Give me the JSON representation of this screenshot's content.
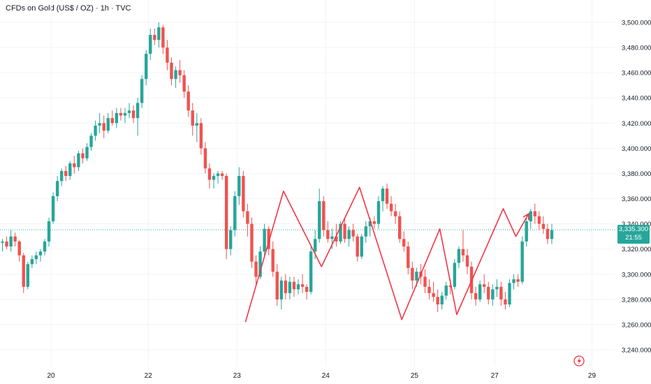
{
  "header": {
    "title": "CFDs on Gold (US$ / OZ) · 1h · TVC"
  },
  "price_label": {
    "price": "3,335.300",
    "countdown": "21:55"
  },
  "colors": {
    "up": "#26a69a",
    "down": "#ef5350",
    "pattern": "#f23645",
    "price_line": "#26a69a",
    "grid": "#f0f3fa"
  },
  "icons": {
    "event": "lightning-icon"
  },
  "chart_data": {
    "type": "candlestick",
    "title": "CFDs on Gold (US$ / OZ) · 1h · TVC",
    "ylim": [
      3230,
      3505
    ],
    "y_ticks": [
      "3,240.000",
      "3,260.000",
      "3,280.000",
      "3,300.000",
      "3,320.000",
      "3,340.000",
      "3,360.000",
      "3,380.000",
      "3,400.000",
      "3,420.000",
      "3,440.000",
      "3,460.000",
      "3,480.000",
      "3,500.000"
    ],
    "x_ticks": [
      "20",
      "22",
      "23",
      "24",
      "25",
      "27",
      "29"
    ],
    "x_tick_bars": [
      11.5,
      34.5,
      55.5,
      76.5,
      97.5,
      116.5,
      139.5
    ],
    "last_price": 3335.3,
    "candles": [
      [
        3325,
        3328,
        3318,
        3326
      ],
      [
        3326,
        3330,
        3320,
        3322
      ],
      [
        3322,
        3335,
        3318,
        3330
      ],
      [
        3330,
        3333,
        3322,
        3326
      ],
      [
        3326,
        3327,
        3310,
        3315
      ],
      [
        3315,
        3317,
        3285,
        3290
      ],
      [
        3290,
        3310,
        3288,
        3308
      ],
      [
        3308,
        3315,
        3305,
        3312
      ],
      [
        3312,
        3318,
        3308,
        3315
      ],
      [
        3315,
        3320,
        3310,
        3318
      ],
      [
        3318,
        3328,
        3315,
        3326
      ],
      [
        3326,
        3345,
        3322,
        3342
      ],
      [
        3342,
        3365,
        3340,
        3362
      ],
      [
        3362,
        3378,
        3358,
        3374
      ],
      [
        3374,
        3384,
        3370,
        3382
      ],
      [
        3382,
        3386,
        3374,
        3378
      ],
      [
        3378,
        3390,
        3375,
        3388
      ],
      [
        3388,
        3394,
        3380,
        3385
      ],
      [
        3385,
        3398,
        3382,
        3396
      ],
      [
        3396,
        3400,
        3388,
        3392
      ],
      [
        3392,
        3404,
        3390,
        3401
      ],
      [
        3401,
        3412,
        3398,
        3410
      ],
      [
        3410,
        3422,
        3406,
        3418
      ],
      [
        3418,
        3428,
        3412,
        3420
      ],
      [
        3420,
        3426,
        3408,
        3414
      ],
      [
        3414,
        3428,
        3412,
        3424
      ],
      [
        3424,
        3430,
        3418,
        3420
      ],
      [
        3420,
        3432,
        3416,
        3428
      ],
      [
        3428,
        3432,
        3422,
        3426
      ],
      [
        3426,
        3432,
        3420,
        3428
      ],
      [
        3428,
        3436,
        3424,
        3430
      ],
      [
        3430,
        3434,
        3420,
        3424
      ],
      [
        3424,
        3440,
        3410,
        3436
      ],
      [
        3436,
        3458,
        3432,
        3455
      ],
      [
        3455,
        3478,
        3450,
        3475
      ],
      [
        3475,
        3495,
        3470,
        3490
      ],
      [
        3490,
        3495,
        3482,
        3486
      ],
      [
        3486,
        3500,
        3480,
        3496
      ],
      [
        3496,
        3498,
        3475,
        3480
      ],
      [
        3480,
        3486,
        3462,
        3468
      ],
      [
        3468,
        3472,
        3450,
        3455
      ],
      [
        3455,
        3465,
        3448,
        3462
      ],
      [
        3462,
        3470,
        3452,
        3458
      ],
      [
        3458,
        3462,
        3440,
        3445
      ],
      [
        3445,
        3450,
        3425,
        3430
      ],
      [
        3430,
        3436,
        3410,
        3418
      ],
      [
        3418,
        3428,
        3405,
        3420
      ],
      [
        3420,
        3424,
        3395,
        3400
      ],
      [
        3400,
        3405,
        3380,
        3384
      ],
      [
        3384,
        3388,
        3368,
        3375
      ],
      [
        3375,
        3380,
        3368,
        3378
      ],
      [
        3378,
        3382,
        3372,
        3380
      ],
      [
        3380,
        3382,
        3375,
        3378
      ],
      [
        3378,
        3380,
        3312,
        3320
      ],
      [
        3320,
        3338,
        3315,
        3335
      ],
      [
        3335,
        3366,
        3330,
        3362
      ],
      [
        3362,
        3385,
        3355,
        3378
      ],
      [
        3378,
        3382,
        3345,
        3350
      ],
      [
        3350,
        3356,
        3330,
        3340
      ],
      [
        3340,
        3345,
        3305,
        3310
      ],
      [
        3310,
        3315,
        3292,
        3298
      ],
      [
        3298,
        3322,
        3296,
        3318
      ],
      [
        3318,
        3340,
        3315,
        3336
      ],
      [
        3336,
        3338,
        3315,
        3320
      ],
      [
        3320,
        3326,
        3298,
        3302
      ],
      [
        3302,
        3308,
        3275,
        3280
      ],
      [
        3280,
        3298,
        3272,
        3295
      ],
      [
        3295,
        3300,
        3280,
        3285
      ],
      [
        3285,
        3298,
        3280,
        3294
      ],
      [
        3294,
        3298,
        3282,
        3288
      ],
      [
        3288,
        3296,
        3284,
        3292
      ],
      [
        3292,
        3300,
        3285,
        3290
      ],
      [
        3290,
        3292,
        3280,
        3286
      ],
      [
        3286,
        3322,
        3284,
        3318
      ],
      [
        3318,
        3335,
        3312,
        3328
      ],
      [
        3328,
        3368,
        3325,
        3358
      ],
      [
        3358,
        3362,
        3330,
        3335
      ],
      [
        3335,
        3342,
        3325,
        3328
      ],
      [
        3328,
        3336,
        3320,
        3330
      ],
      [
        3330,
        3340,
        3322,
        3326
      ],
      [
        3326,
        3342,
        3324,
        3340
      ],
      [
        3340,
        3345,
        3325,
        3328
      ],
      [
        3328,
        3338,
        3322,
        3335
      ],
      [
        3335,
        3340,
        3326,
        3330
      ],
      [
        3330,
        3332,
        3310,
        3314
      ],
      [
        3314,
        3332,
        3312,
        3330
      ],
      [
        3330,
        3342,
        3325,
        3338
      ],
      [
        3338,
        3345,
        3330,
        3342
      ],
      [
        3342,
        3346,
        3336,
        3340
      ],
      [
        3340,
        3362,
        3336,
        3358
      ],
      [
        3358,
        3370,
        3350,
        3368
      ],
      [
        3368,
        3372,
        3352,
        3356
      ],
      [
        3356,
        3362,
        3346,
        3350
      ],
      [
        3350,
        3356,
        3340,
        3346
      ],
      [
        3346,
        3350,
        3325,
        3328
      ],
      [
        3328,
        3334,
        3318,
        3322
      ],
      [
        3322,
        3326,
        3300,
        3305
      ],
      [
        3305,
        3310,
        3288,
        3295
      ],
      [
        3295,
        3305,
        3290,
        3302
      ],
      [
        3302,
        3308,
        3292,
        3298
      ],
      [
        3298,
        3304,
        3285,
        3290
      ],
      [
        3290,
        3296,
        3280,
        3285
      ],
      [
        3285,
        3294,
        3278,
        3282
      ],
      [
        3282,
        3288,
        3270,
        3276
      ],
      [
        3276,
        3286,
        3272,
        3283
      ],
      [
        3283,
        3294,
        3280,
        3291
      ],
      [
        3291,
        3296,
        3284,
        3290
      ],
      [
        3290,
        3312,
        3288,
        3309
      ],
      [
        3309,
        3322,
        3305,
        3320
      ],
      [
        3320,
        3335,
        3310,
        3315
      ],
      [
        3315,
        3320,
        3300,
        3306
      ],
      [
        3306,
        3310,
        3280,
        3285
      ],
      [
        3285,
        3290,
        3275,
        3280
      ],
      [
        3280,
        3295,
        3278,
        3292
      ],
      [
        3292,
        3300,
        3285,
        3290
      ],
      [
        3290,
        3294,
        3276,
        3280
      ],
      [
        3280,
        3292,
        3275,
        3288
      ],
      [
        3288,
        3296,
        3282,
        3290
      ],
      [
        3290,
        3294,
        3275,
        3280
      ],
      [
        3280,
        3286,
        3272,
        3276
      ],
      [
        3276,
        3296,
        3274,
        3293
      ],
      [
        3293,
        3300,
        3288,
        3296
      ],
      [
        3296,
        3300,
        3290,
        3294
      ],
      [
        3294,
        3330,
        3292,
        3326
      ],
      [
        3326,
        3345,
        3322,
        3342
      ],
      [
        3342,
        3352,
        3336,
        3350
      ],
      [
        3350,
        3356,
        3340,
        3346
      ],
      [
        3346,
        3350,
        3335,
        3340
      ],
      [
        3340,
        3346,
        3332,
        3336
      ],
      [
        3336,
        3340,
        3324,
        3328
      ],
      [
        3328,
        3340,
        3324,
        3335
      ]
    ],
    "pattern_line": [
      [
        57.5,
        3262
      ],
      [
        66.5,
        3366
      ],
      [
        75.5,
        3306
      ],
      [
        84.5,
        3369
      ],
      [
        94.5,
        3264
      ],
      [
        103.5,
        3336
      ],
      [
        107.5,
        3268
      ],
      [
        118.5,
        3352
      ],
      [
        121.5,
        3330
      ],
      [
        124.5,
        3348
      ]
    ]
  }
}
